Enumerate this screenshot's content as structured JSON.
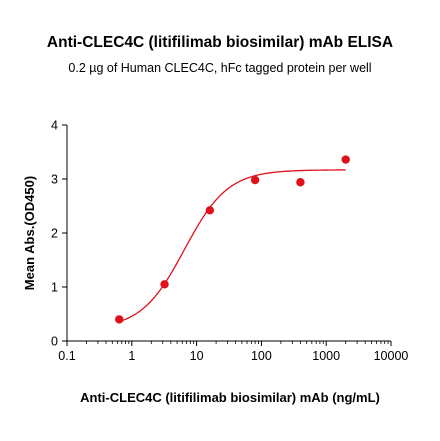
{
  "chart_data": {
    "type": "scatter",
    "title": "Anti-CLEC4C (litifilimab biosimilar) mAb ELISA",
    "subtitle": "0.2 µg of Human CLEC4C, hFc tagged protein per well",
    "xlabel": "Anti-CLEC4C (litifilimab biosimilar) mAb (ng/mL)",
    "ylabel": "Mean Abs.(OD450)",
    "xscale": "log",
    "xlim": [
      0.1,
      10000
    ],
    "ylim": [
      0,
      4
    ],
    "x_ticks": [
      "0.1",
      "1",
      "10",
      "100",
      "1000",
      "10000"
    ],
    "y_ticks": [
      "0",
      "1",
      "2",
      "3",
      "4"
    ],
    "series": [
      {
        "color": "#e0101a",
        "points": [
          {
            "x": 0.64,
            "y": 0.4
          },
          {
            "x": 3.2,
            "y": 1.05
          },
          {
            "x": 16,
            "y": 2.42
          },
          {
            "x": 80,
            "y": 2.98
          },
          {
            "x": 400,
            "y": 2.94
          },
          {
            "x": 2000,
            "y": 3.36
          }
        ]
      }
    ],
    "fit": {
      "type": "4PL",
      "bottom": 0.22,
      "top": 3.17,
      "ec50": 6.5,
      "hill": 1.3
    },
    "grid": false
  }
}
